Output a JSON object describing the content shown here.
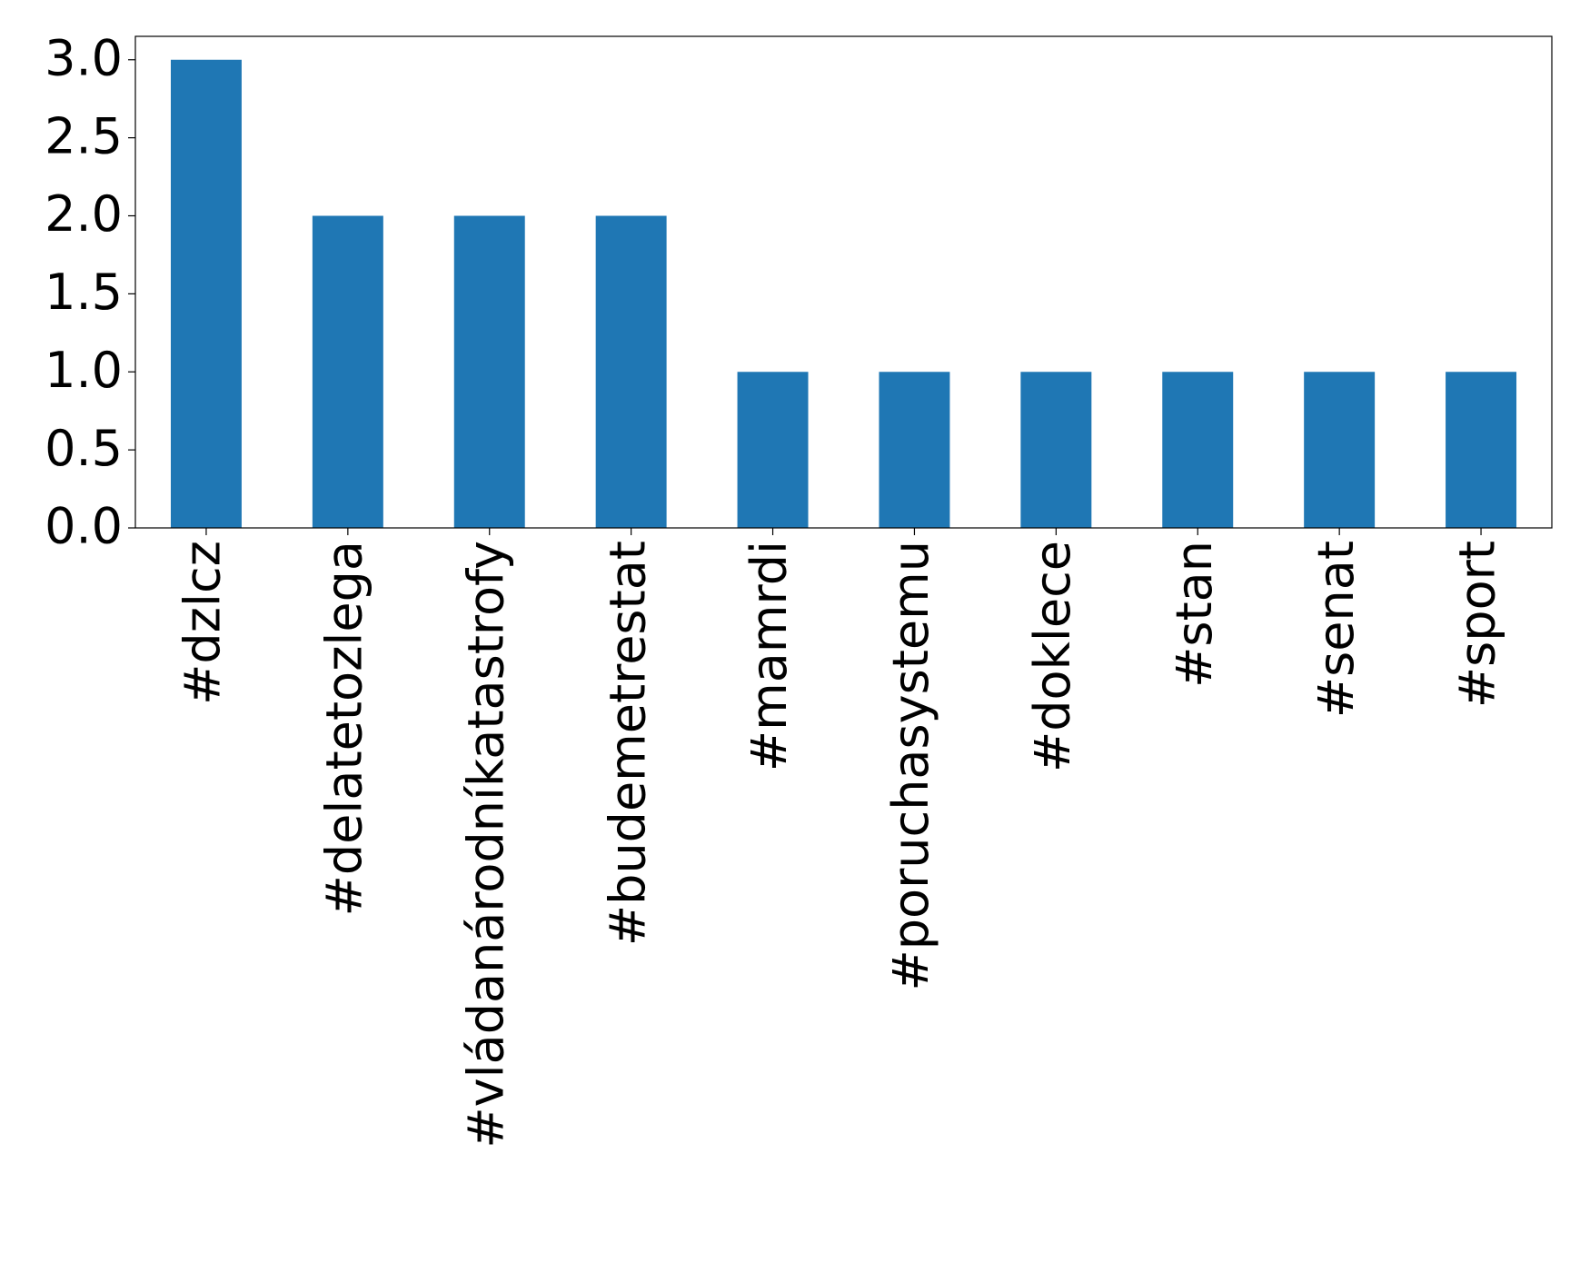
{
  "chart_data": {
    "type": "bar",
    "categories": [
      "#dzlcz",
      "#delatetozlega",
      "#vládanárodníkatastrofy",
      "#budemetrestat",
      "#mamrdi",
      "#poruchasystemu",
      "#doklece",
      "#stan",
      "#senat",
      "#sport"
    ],
    "values": [
      3,
      2,
      2,
      2,
      1,
      1,
      1,
      1,
      1,
      1
    ],
    "color": "#1f77b4",
    "ylim": [
      0,
      3.15
    ],
    "yticks": [
      {
        "value": 0,
        "label": "0.0"
      },
      0.5,
      {
        "value": 1,
        "label": "1.0"
      },
      1.5,
      {
        "value": 2,
        "label": "2.0"
      },
      2.5,
      {
        "value": 3,
        "label": "3.0"
      }
    ],
    "grid": false
  }
}
